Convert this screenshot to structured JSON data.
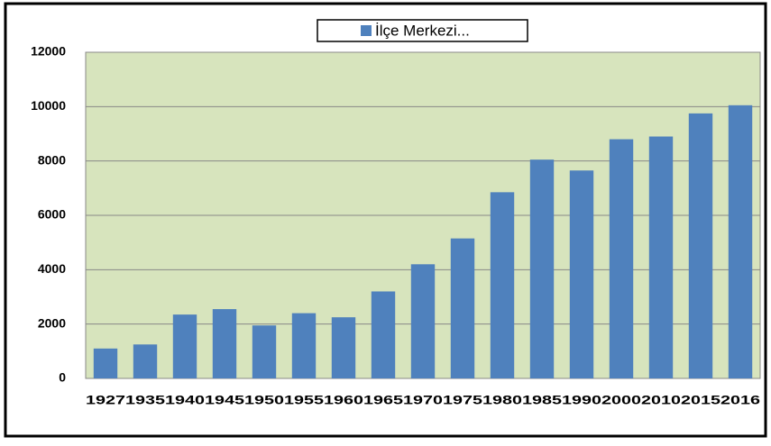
{
  "chart_data": {
    "type": "bar",
    "categories": [
      "1927",
      "1935",
      "1940",
      "1945",
      "1950",
      "1955",
      "1960",
      "1965",
      "1970",
      "1975",
      "1980",
      "1985",
      "1990",
      "2000",
      "2010",
      "2015",
      "2016"
    ],
    "series": [
      {
        "name": "İlçe Merkezi...",
        "color": "#4f81bd",
        "values": [
          1100,
          1250,
          2350,
          2550,
          1950,
          2400,
          2250,
          3200,
          4200,
          5150,
          6850,
          8050,
          7650,
          8800,
          8900,
          9750,
          10050
        ]
      }
    ],
    "ylim": [
      0,
      12000
    ],
    "yticks": [
      0,
      2000,
      4000,
      6000,
      8000,
      10000,
      12000
    ],
    "grid": true,
    "legend": "top",
    "plot_background": "#d7e4bd"
  }
}
